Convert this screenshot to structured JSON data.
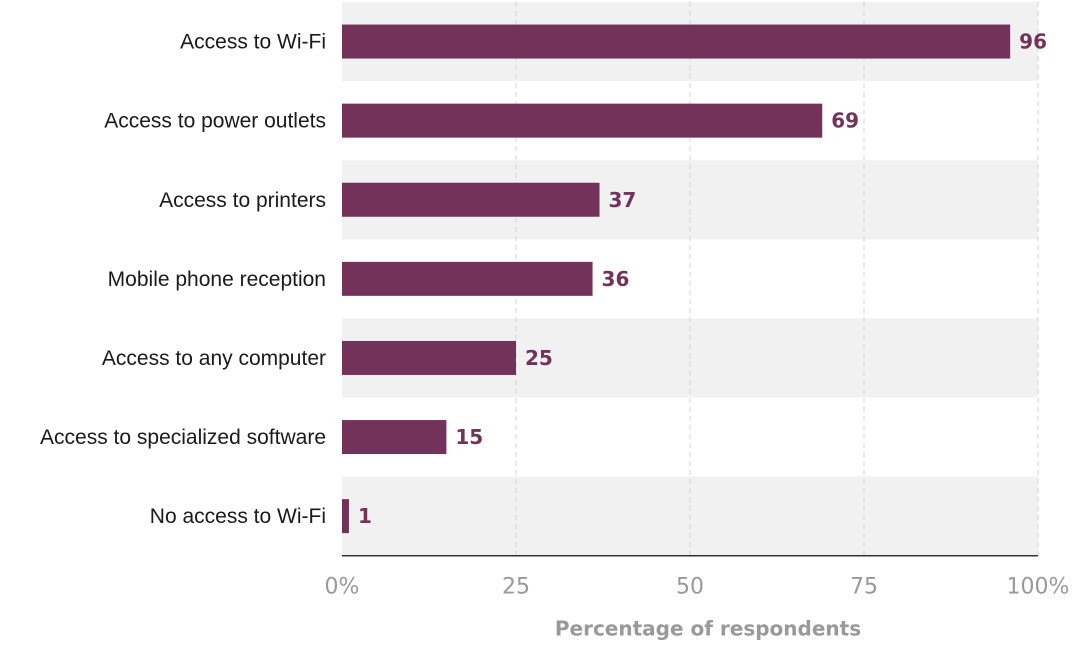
{
  "chart_data": {
    "type": "bar",
    "orientation": "horizontal",
    "categories": [
      "Access to Wi-Fi",
      "Access to power outlets",
      "Access to printers",
      "Mobile phone reception",
      "Access to any computer",
      "Access to specialized software",
      "No access to Wi-Fi"
    ],
    "values": [
      96,
      69,
      37,
      36,
      25,
      15,
      1
    ],
    "xlim": [
      0,
      100
    ],
    "xticks": [
      0,
      25,
      50,
      75,
      100
    ],
    "xtick_labels": [
      "0%",
      "25",
      "50",
      "75",
      "100%"
    ],
    "xlabel": "Percentage of respondents",
    "title": "",
    "grid": "vertical dashed",
    "alternating_row_bands": true,
    "colors": {
      "bar": "#73325a",
      "value_label": "#73325a",
      "band": "#f1f1f1",
      "axis_text": "#999999"
    }
  }
}
